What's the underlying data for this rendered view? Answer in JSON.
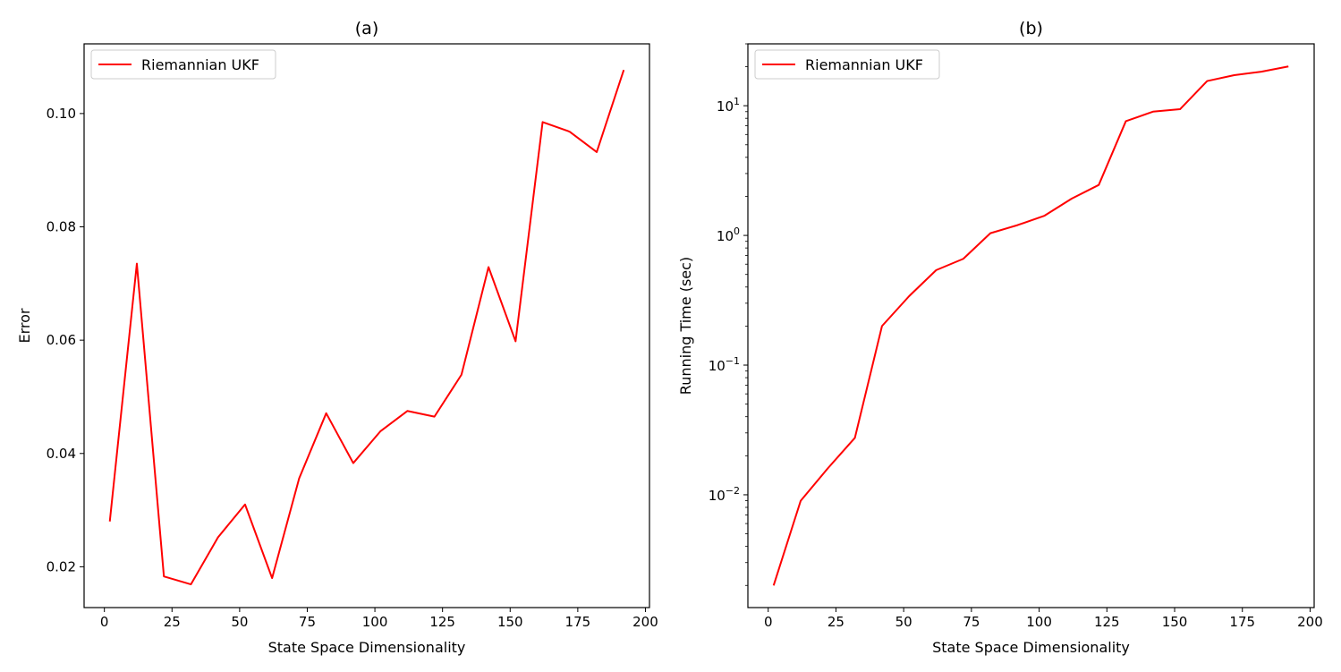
{
  "chart_data": [
    {
      "type": "line",
      "title": "(a)",
      "xlabel": "State Space Dimensionality",
      "ylabel": "Error",
      "xlim": [
        -7.5,
        201.5
      ],
      "ylim": [
        0.0128,
        0.1123
      ],
      "yscale": "linear",
      "xticks": [
        0,
        25,
        50,
        75,
        100,
        125,
        150,
        175,
        200
      ],
      "xtick_labels": [
        "0",
        "25",
        "50",
        "75",
        "100",
        "125",
        "150",
        "175",
        "200"
      ],
      "yticks": [
        0.02,
        0.04,
        0.06,
        0.08,
        0.1
      ],
      "ytick_labels": [
        "0.02",
        "0.04",
        "0.06",
        "0.08",
        "0.10"
      ],
      "legend_position": "top-left",
      "grid": false,
      "series": [
        {
          "name": "Riemannian UKF",
          "color": "#ff0000",
          "x": [
            2,
            12,
            22,
            32,
            42,
            52,
            62,
            72,
            82,
            92,
            102,
            112,
            122,
            132,
            142,
            152,
            162,
            172,
            182,
            192
          ],
          "y": [
            0.028,
            0.0735,
            0.0183,
            0.0169,
            0.0252,
            0.031,
            0.018,
            0.0356,
            0.0471,
            0.0383,
            0.0439,
            0.0475,
            0.0465,
            0.0539,
            0.0729,
            0.0598,
            0.0985,
            0.0968,
            0.0932,
            0.1077
          ]
        }
      ]
    },
    {
      "type": "line",
      "title": "(b)",
      "xlabel": "State Space Dimensionality",
      "ylabel": "Running Time (sec)",
      "xlim": [
        -7.5,
        201.5
      ],
      "ylim": [
        0.00135,
        30
      ],
      "yscale": "log",
      "xticks": [
        0,
        25,
        50,
        75,
        100,
        125,
        150,
        175,
        200
      ],
      "xtick_labels": [
        "0",
        "25",
        "50",
        "75",
        "100",
        "125",
        "150",
        "175",
        "200"
      ],
      "yticks": [
        0.01,
        0.1,
        1,
        10
      ],
      "ytick_labels": [
        {
          "base": "10",
          "exp": "−2"
        },
        {
          "base": "10",
          "exp": "−1"
        },
        {
          "base": "10",
          "exp": "0"
        },
        {
          "base": "10",
          "exp": "1"
        }
      ],
      "legend_position": "top-left",
      "grid": false,
      "series": [
        {
          "name": "Riemannian UKF",
          "color": "#ff0000",
          "x": [
            2,
            12,
            22,
            32,
            42,
            52,
            62,
            72,
            82,
            92,
            102,
            112,
            122,
            132,
            142,
            152,
            162,
            172,
            182,
            192
          ],
          "y": [
            0.002,
            0.009,
            0.016,
            0.0275,
            0.2,
            0.34,
            0.54,
            0.66,
            1.04,
            1.2,
            1.42,
            1.92,
            2.45,
            7.6,
            9.0,
            9.4,
            15.5,
            17.2,
            18.3,
            20.1
          ]
        }
      ]
    }
  ]
}
